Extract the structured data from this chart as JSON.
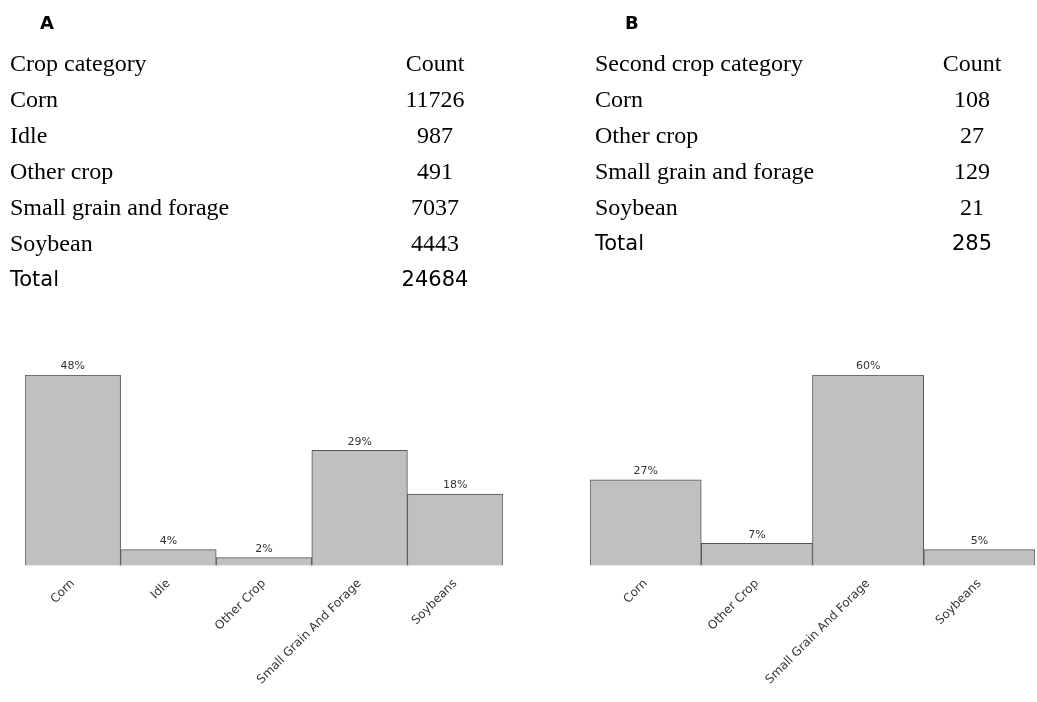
{
  "chart_data": [
    {
      "type": "other",
      "title": "A",
      "annotations": [
        "Crop category",
        "Count"
      ],
      "categories": [
        "Corn",
        "Idle",
        "Other crop",
        "Small grain and forage",
        "Soybean",
        "Total"
      ],
      "values": [
        11726,
        987,
        491,
        7037,
        4443,
        24684
      ],
      "data_labels": true
    },
    {
      "type": "other",
      "title": "B",
      "annotations": [
        "Second crop category",
        "Count"
      ],
      "categories": [
        "Corn",
        "Other crop",
        "Small grain and forage",
        "Soybean",
        "Total"
      ],
      "values": [
        108,
        27,
        129,
        21,
        285
      ],
      "data_labels": true
    },
    {
      "type": "bar",
      "categories": [
        "Corn",
        "Idle",
        "Other Crop",
        "Small Grain And Forage",
        "Soybeans"
      ],
      "values": [
        48,
        4,
        2,
        29,
        18
      ],
      "value_labels": [
        "48%",
        "4%",
        "2%",
        "29%",
        "18%"
      ],
      "color": "#c0c0c0"
    },
    {
      "type": "bar",
      "categories": [
        "Corn",
        "Other Crop",
        "Small Grain And Forage",
        "Soybeans"
      ],
      "values": [
        27,
        7,
        60,
        5
      ],
      "value_labels": [
        "27%",
        "7%",
        "60%",
        "5%"
      ],
      "color": "#c0c0c0"
    }
  ]
}
